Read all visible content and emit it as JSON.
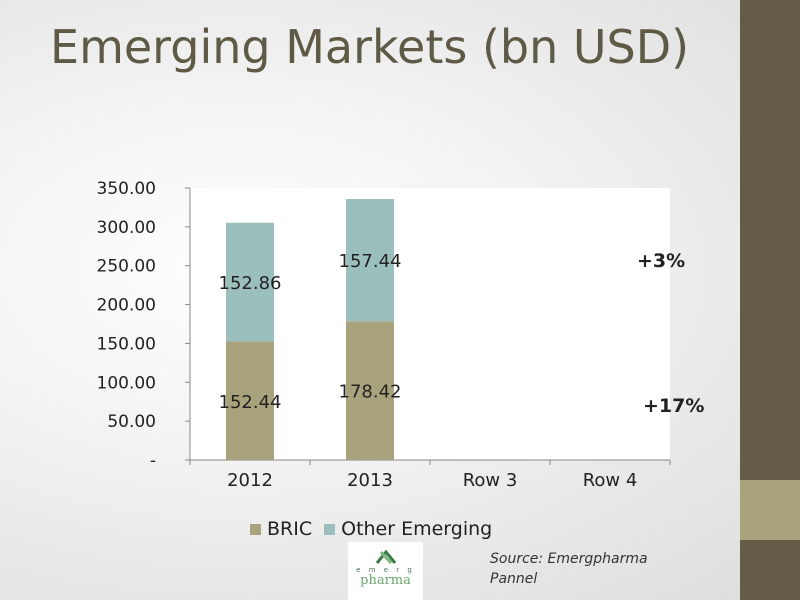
{
  "slide": {
    "title": "Emerging Markets (bn USD)",
    "source": "Source: Emergpharma Pannel",
    "logo_text_top": "e m e r g",
    "logo_text_main": "pharma"
  },
  "colors": {
    "sidebar": "#655c47",
    "sidebar_accent": "#a9a37d",
    "title": "#5f5a45",
    "bric": "#a9a37d",
    "other_emerging": "#9bbfbc"
  },
  "annotations": [
    "+3%",
    "+17%"
  ],
  "chart_data": {
    "type": "bar",
    "stacked": true,
    "categories": [
      "2012",
      "2013",
      "Row 3",
      "Row 4"
    ],
    "series": [
      {
        "name": "BRIC",
        "values": [
          152.44,
          178.42,
          null,
          null
        ],
        "labels": [
          "152.44",
          "178.42",
          "",
          ""
        ]
      },
      {
        "name": "Other Emerging",
        "values": [
          152.86,
          157.44,
          null,
          null
        ],
        "labels": [
          "152.86",
          "157.44",
          "",
          ""
        ]
      }
    ],
    "ylim": [
      0,
      350
    ],
    "yticks": [
      0,
      50,
      100,
      150,
      200,
      250,
      300,
      350
    ],
    "ytick_labels": [
      "-",
      "50.00",
      "100.00",
      "150.00",
      "200.00",
      "250.00",
      "300.00",
      "350.00"
    ],
    "grid": false,
    "legend_position": "bottom"
  }
}
